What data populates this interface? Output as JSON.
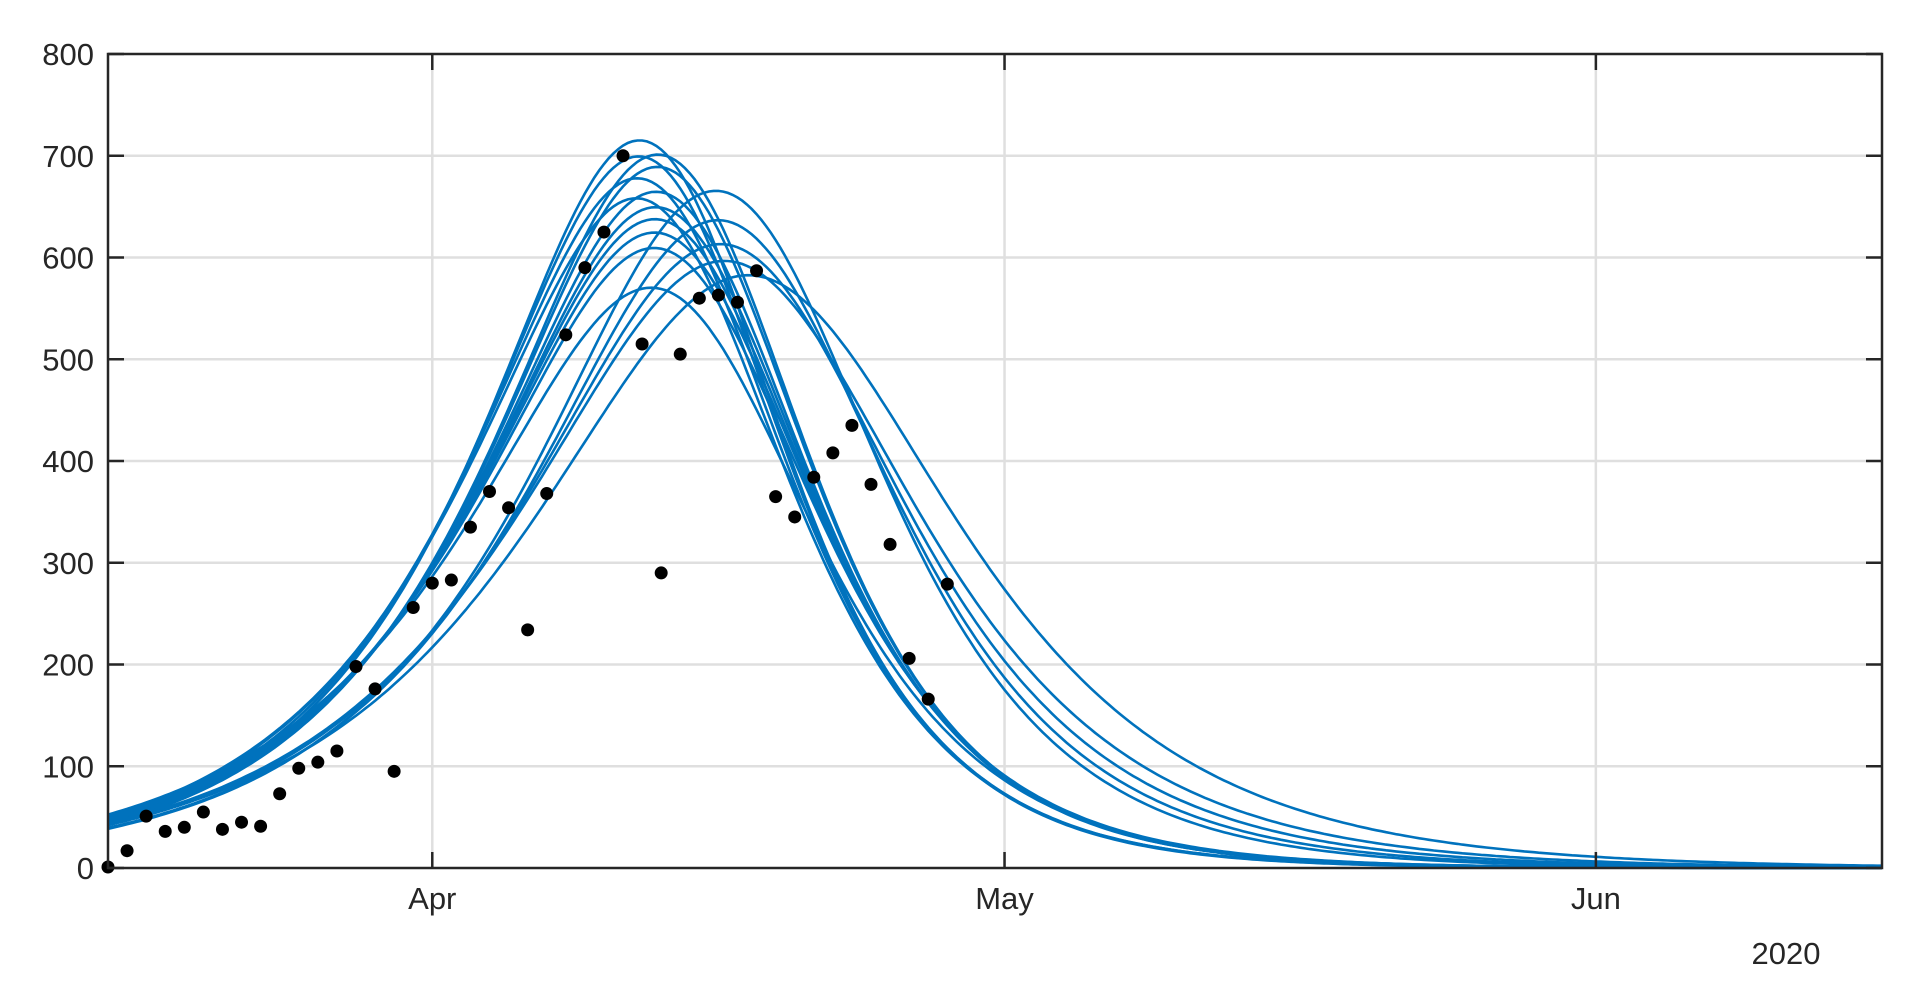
{
  "chart_data": {
    "type": "line",
    "title": "",
    "xlabel": "",
    "ylabel": "",
    "x_axis": {
      "type": "date",
      "min": "2020-03-15",
      "max": "2020-06-16",
      "ticks": [
        {
          "date": "2020-04-01",
          "label": "Apr"
        },
        {
          "date": "2020-05-01",
          "label": "May"
        },
        {
          "date": "2020-06-01",
          "label": "Jun"
        }
      ],
      "secondary_label": "2020"
    },
    "y_axis": {
      "min": 0,
      "max": 800,
      "ticks": [
        0,
        100,
        200,
        300,
        400,
        500,
        600,
        700,
        800
      ]
    },
    "grid": true,
    "legend": "none",
    "colors": {
      "model_curves": "#0072bd",
      "observed": "#000000",
      "grid": "#dfdfdf",
      "axis": "#262626"
    },
    "observed": {
      "x": [
        "2020-03-15",
        "2020-03-16",
        "2020-03-17",
        "2020-03-18",
        "2020-03-19",
        "2020-03-20",
        "2020-03-21",
        "2020-03-22",
        "2020-03-23",
        "2020-03-24",
        "2020-03-25",
        "2020-03-26",
        "2020-03-27",
        "2020-03-28",
        "2020-03-29",
        "2020-03-30",
        "2020-03-31",
        "2020-04-01",
        "2020-04-02",
        "2020-04-03",
        "2020-04-04",
        "2020-04-05",
        "2020-04-06",
        "2020-04-07",
        "2020-04-08",
        "2020-04-09",
        "2020-04-10",
        "2020-04-11",
        "2020-04-12",
        "2020-04-13",
        "2020-04-14",
        "2020-04-15",
        "2020-04-16",
        "2020-04-17",
        "2020-04-18",
        "2020-04-19",
        "2020-04-20",
        "2020-04-21",
        "2020-04-22",
        "2020-04-23",
        "2020-04-24",
        "2020-04-25",
        "2020-04-26",
        "2020-04-27",
        "2020-04-28"
      ],
      "y": [
        1,
        17,
        51,
        36,
        40,
        55,
        38,
        45,
        41,
        73,
        98,
        104,
        115,
        198,
        176,
        95,
        256,
        280,
        283,
        335,
        370,
        354,
        234,
        368,
        524,
        590,
        625,
        700,
        515,
        290,
        505,
        560,
        563,
        556,
        587,
        365,
        345,
        384,
        408,
        435,
        377,
        318,
        206,
        166,
        279
      ]
    },
    "series": [
      {
        "peak_date": "2020-04-13",
        "peak": 706,
        "k_rise": 0.1195,
        "k_fall": 0.165
      },
      {
        "peak_date": "2020-04-13",
        "peak": 690,
        "k_rise": 0.117,
        "k_fall": 0.163
      },
      {
        "peak_date": "2020-04-14",
        "peak": 692,
        "k_rise": 0.1155,
        "k_fall": 0.16
      },
      {
        "peak_date": "2020-04-14",
        "peak": 680,
        "k_rise": 0.1145,
        "k_fall": 0.159
      },
      {
        "peak_date": "2020-04-13",
        "peak": 668,
        "k_rise": 0.114,
        "k_fall": 0.161
      },
      {
        "peak_date": "2020-04-14",
        "peak": 655,
        "k_rise": 0.112,
        "k_fall": 0.158
      },
      {
        "peak_date": "2020-04-13",
        "peak": 648,
        "k_rise": 0.112,
        "k_fall": 0.16
      },
      {
        "peak_date": "2020-04-14",
        "peak": 640,
        "k_rise": 0.1105,
        "k_fall": 0.156
      },
      {
        "peak_date": "2020-04-14",
        "peak": 628,
        "k_rise": 0.109,
        "k_fall": 0.155
      },
      {
        "peak_date": "2020-04-14",
        "peak": 615,
        "k_rise": 0.1075,
        "k_fall": 0.153
      },
      {
        "peak_date": "2020-04-14",
        "peak": 600,
        "k_rise": 0.106,
        "k_fall": 0.151
      },
      {
        "peak_date": "2020-04-14",
        "peak": 560,
        "k_rise": 0.102,
        "k_fall": 0.15
      },
      {
        "peak_date": "2020-04-17",
        "peak": 659,
        "k_rise": 0.107,
        "k_fall": 0.142
      },
      {
        "peak_date": "2020-04-17",
        "peak": 632,
        "k_rise": 0.105,
        "k_fall": 0.134
      },
      {
        "peak_date": "2020-04-17",
        "peak": 610,
        "k_rise": 0.102,
        "k_fall": 0.125
      },
      {
        "peak_date": "2020-04-17",
        "peak": 595,
        "k_rise": 0.1,
        "k_fall": 0.116
      },
      {
        "peak_date": "2020-04-18",
        "peak": 582,
        "k_rise": 0.097,
        "k_fall": 0.106
      }
    ]
  }
}
